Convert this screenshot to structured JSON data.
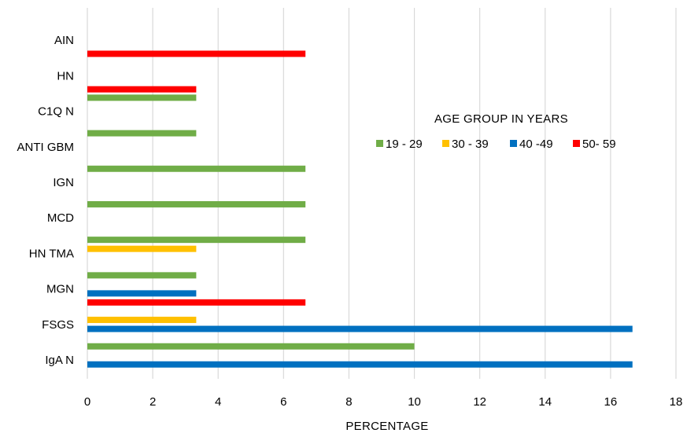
{
  "chart_data": {
    "type": "bar",
    "orientation": "horizontal",
    "categories": [
      "IgA N",
      "FSGS",
      "MGN",
      "HN TMA",
      "MCD",
      "IGN",
      "ANTI GBM",
      "C1Q N",
      "HN",
      "AIN"
    ],
    "series": [
      {
        "name": "19 - 29",
        "color": "#70ad47",
        "values": [
          10,
          null,
          3.33,
          6.67,
          6.67,
          6.67,
          3.33,
          3.33,
          null,
          null
        ]
      },
      {
        "name": "30 - 39",
        "color": "#ffc000",
        "values": [
          null,
          3.33,
          null,
          3.33,
          null,
          null,
          null,
          null,
          null,
          null
        ]
      },
      {
        "name": "40 -49",
        "color": "#0070c0",
        "values": [
          16.67,
          16.67,
          3.33,
          null,
          null,
          null,
          null,
          null,
          null,
          null
        ]
      },
      {
        "name": "50- 59",
        "color": "#ff0000",
        "values": [
          null,
          null,
          6.67,
          null,
          null,
          null,
          null,
          null,
          3.33,
          6.67
        ]
      }
    ],
    "xlabel": "PERCENTAGE",
    "ylabel": "",
    "xlim": [
      0,
      18
    ],
    "xticks": [
      "0",
      "2",
      "4",
      "6",
      "8",
      "10",
      "12",
      "14",
      "16",
      "18"
    ],
    "grid": "vertical",
    "legend": {
      "title": "AGE GROUP IN YEARS",
      "placement": "right"
    }
  }
}
